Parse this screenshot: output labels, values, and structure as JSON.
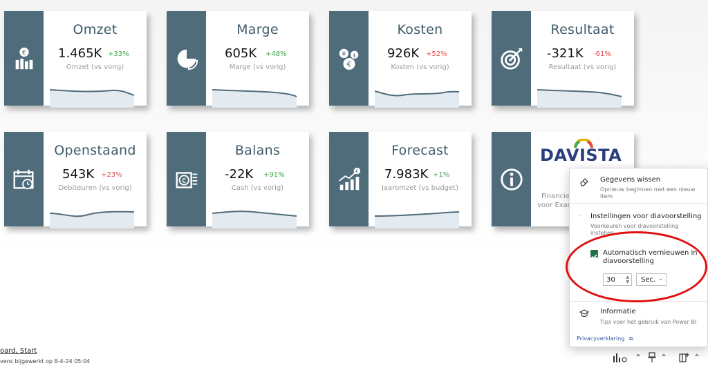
{
  "colors": {
    "sidebar": "#4f6c7a",
    "title": "#3e5b69",
    "up": "#3faa4a",
    "down": "#e24a4a",
    "highlight": "#e01010",
    "checkbox": "#217346"
  },
  "cards": [
    {
      "title": "Omzet",
      "value": "1.465K",
      "pct": "+33%",
      "trend": "up",
      "sub": "Omzet (vs vorig)",
      "icon": "euro-bar-chart-icon"
    },
    {
      "title": "Marge",
      "value": "605K",
      "pct": "+48%",
      "trend": "up",
      "sub": "Marge (vs vorig)",
      "icon": "pie-chart-icon"
    },
    {
      "title": "Kosten",
      "value": "926K",
      "pct": "+52%",
      "trend": "down",
      "sub": "Kosten (vs vorig)",
      "icon": "currency-coins-icon"
    },
    {
      "title": "Resultaat",
      "value": "-321K",
      "pct": "-61%",
      "trend": "down",
      "sub": "Resultaat (vs vorig)",
      "icon": "target-icon"
    },
    {
      "title": "Openstaand",
      "value": "543K",
      "pct": "+23%",
      "trend": "down",
      "sub": "Debiteuren (vs vorig)",
      "icon": "calendar-clock-icon"
    },
    {
      "title": "Balans",
      "value": "-22K",
      "pct": "+91%",
      "trend": "up",
      "sub": "Cash (vs vorig)",
      "icon": "coin-stack-icon"
    },
    {
      "title": "Forecast",
      "value": "7.983K",
      "pct": "+1%",
      "trend": "up",
      "sub": "Jaaromzet (vs budget)",
      "icon": "growth-chart-icon"
    }
  ],
  "davista": {
    "logo": "DAVISTA",
    "line1": "Financie",
    "line2": "voor Exac",
    "icon": "info-icon"
  },
  "menu": {
    "clear_title": "Gegevens wissen",
    "clear_desc": "Opnieuw beginnen met een nieuw item",
    "settings_title": "Instellingen voor diavoorstelling",
    "settings_desc": "Voorkeuren voor diavoorstelling instellen",
    "auto_label": "Automatisch vernieuwen in diavoorstelling",
    "interval_value": "30",
    "interval_unit": "Sec.",
    "info_title": "Informatie",
    "info_desc": "Tips voor het gebruik van Power BI",
    "privacy": "Privacyverklaring"
  },
  "footer": {
    "link": "oard, Start",
    "updated": "vens bijgewerkt op 8-4-24 05:04"
  }
}
